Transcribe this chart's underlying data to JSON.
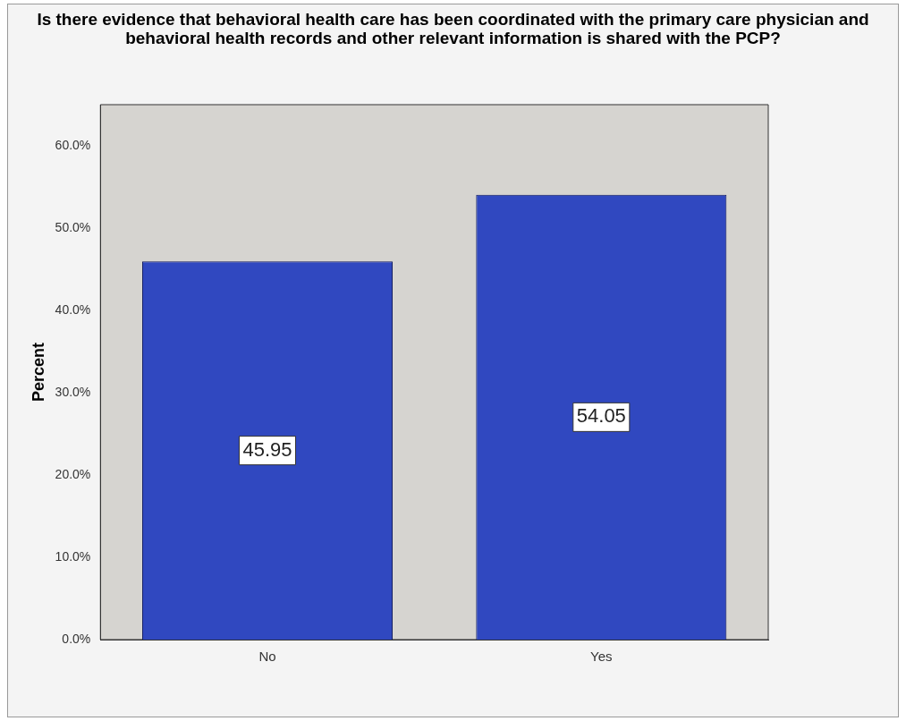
{
  "chart_data": {
    "type": "bar",
    "title": "Is there evidence that behavioral health care has been coordinated with the primary care physician and behavioral health records and other relevant information is shared with the PCP?",
    "ylabel": "Percent",
    "categories": [
      "No",
      "Yes"
    ],
    "values": [
      45.95,
      54.05
    ],
    "color": "#3048c0",
    "data_labels": true,
    "ylim": [
      0,
      65
    ],
    "yticks": [
      {
        "value": 0,
        "label": "0.0%"
      },
      {
        "value": 10,
        "label": "10.0%"
      },
      {
        "value": 20,
        "label": "20.0%"
      },
      {
        "value": 30,
        "label": "30.0%"
      },
      {
        "value": 40,
        "label": "40.0%"
      },
      {
        "value": 50,
        "label": "50.0%"
      },
      {
        "value": 60,
        "label": "60.0%"
      }
    ],
    "grid": false,
    "legend": false
  }
}
